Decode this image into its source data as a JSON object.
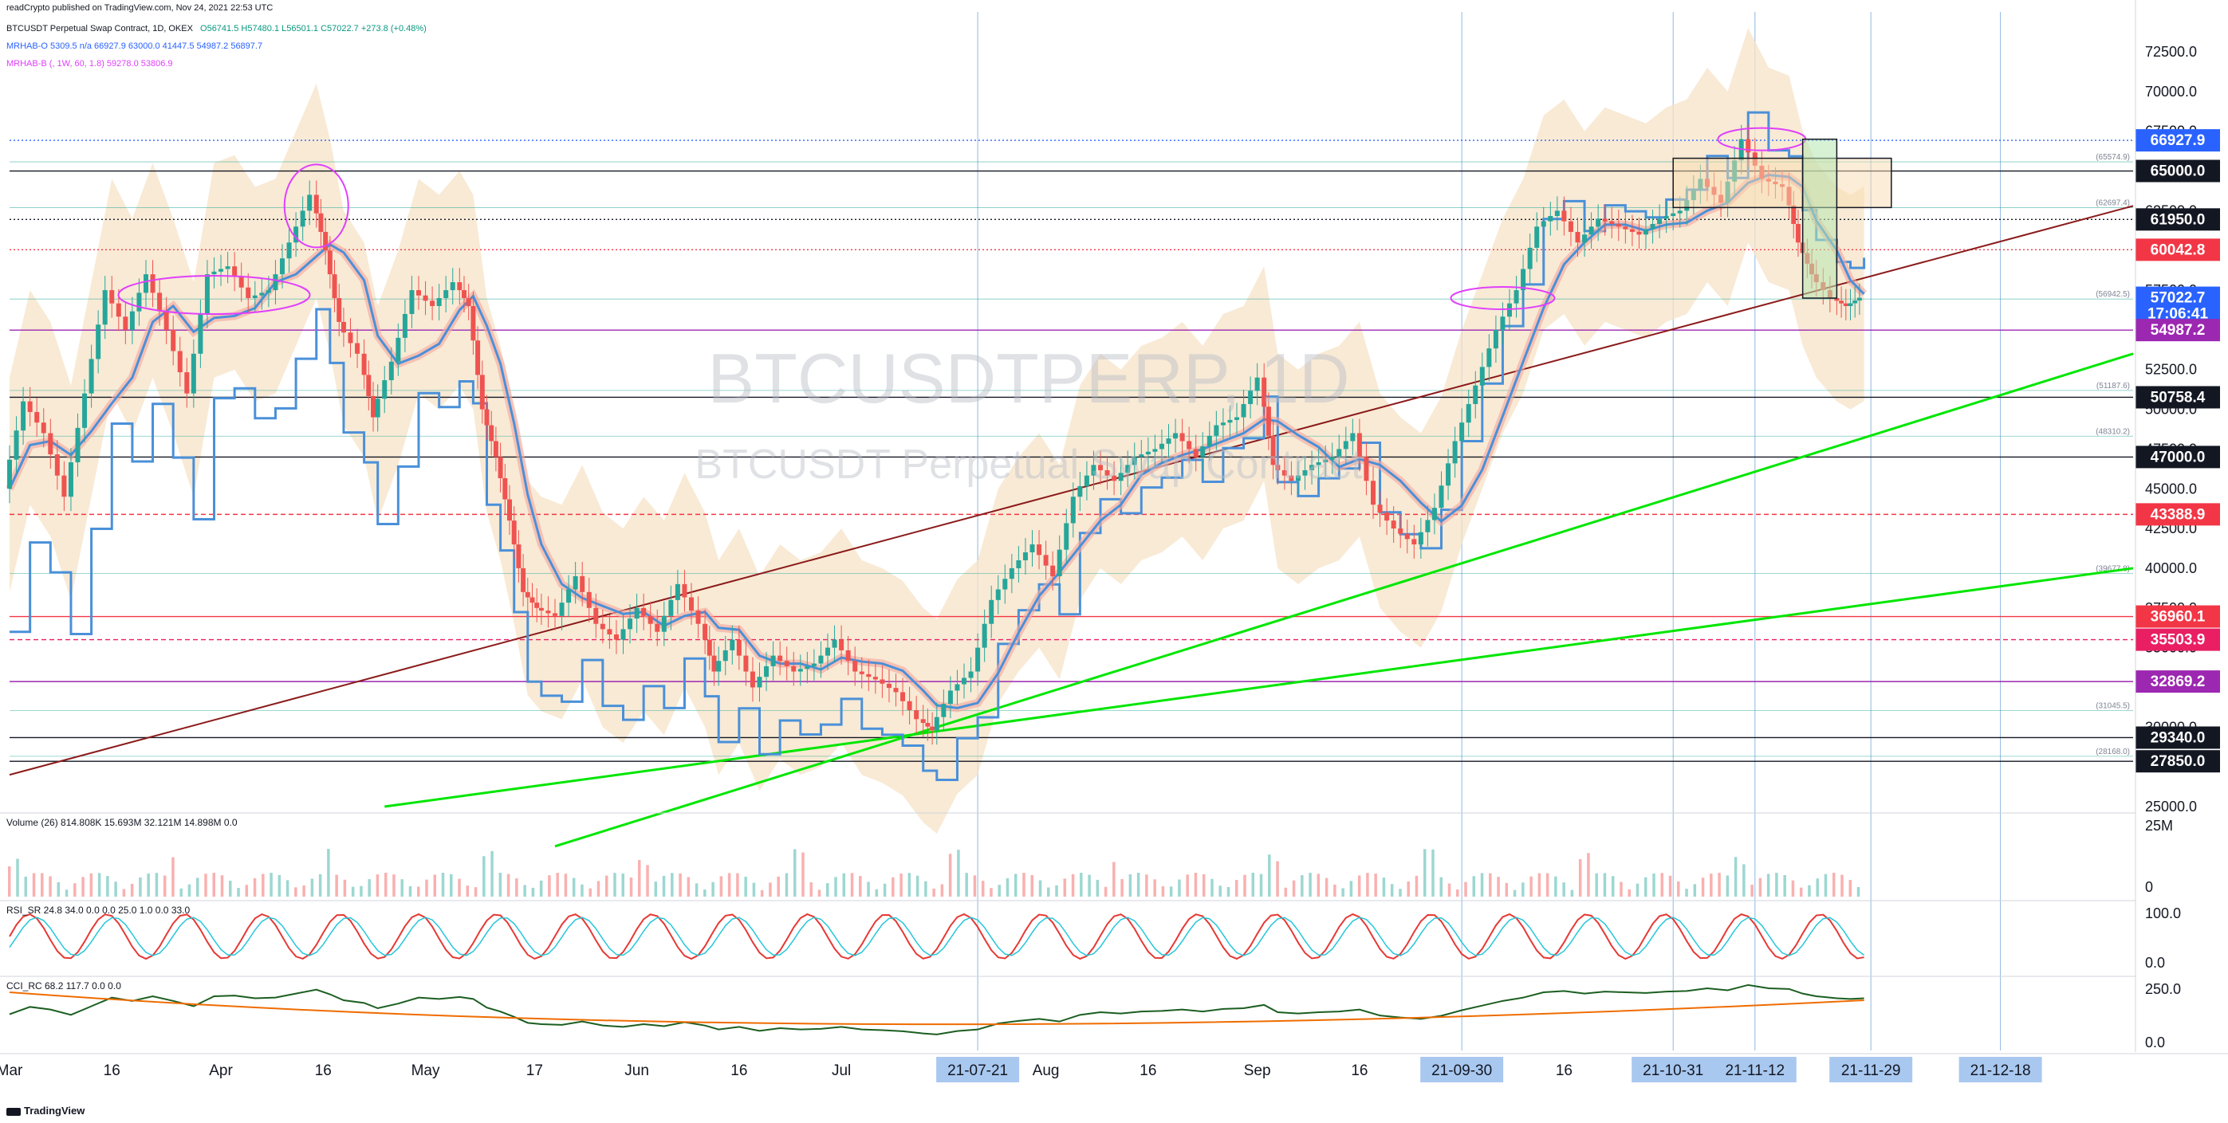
{
  "header": {
    "published": "readCrypto published on TradingView.com, Nov 24, 2021 22:53 UTC",
    "symbol_line": "BTCUSDT Perpetual Swap Contract, 1D, OKEX",
    "ohlc": "O56741.5  H57480.1  L56501.1  C57022.7  +273.8 (+0.48%)",
    "ind1": "MRHAB-O  5309.5  n/a  66927.9  63000.0  41447.5  54987.2  56897.7",
    "ind2": "MRHAB-B  (, 1W, 60, 1.8)  59278.0  53806.9"
  },
  "footer": {
    "brand": "TradingView"
  },
  "watermark": {
    "line1": "BTCUSDTPERP, 1D",
    "line2": "BTCUSDT Perpetual Swap Contract"
  },
  "colors": {
    "bull": "#26a69a",
    "bear": "#ef5350",
    "green_line": "#00e600",
    "trend_line": "#8b1a1a",
    "blue_line": "#4a90d9",
    "magenta": "#e040fb",
    "cloud": "#f6e3c7"
  },
  "chart_data": {
    "type": "candlestick",
    "title": "BTCUSDTPERP, 1D",
    "price_axis": {
      "min": 25000,
      "max": 72500,
      "side": "right",
      "ticks": [
        "72500.0",
        "70000.0",
        "67500.0",
        "65000.0",
        "62500.0",
        "60000.0",
        "57500.0",
        "55000.0",
        "52500.0",
        "50000.0",
        "47500.0",
        "45000.0",
        "42500.0",
        "40000.0",
        "37500.0",
        "35000.0",
        "32500.0",
        "30000.0",
        "27500.0",
        "25000.0"
      ],
      "tick_values": [
        72500,
        70000,
        67500,
        65000,
        62500,
        60000,
        57500,
        55000,
        52500,
        50000,
        47500,
        45000,
        42500,
        40000,
        37500,
        35000,
        32500,
        30000,
        27500,
        25000
      ]
    },
    "time_axis": {
      "labels": [
        "Mar",
        "16",
        "Apr",
        "16",
        "May",
        "17",
        "Jun",
        "16",
        "Jul",
        "21-07-21",
        "Aug",
        "16",
        "Sep",
        "16",
        "21-09-30",
        "16",
        "21-10-31",
        "21-11-12",
        "21-11-29",
        "21-12-18"
      ],
      "label_days": [
        0,
        15,
        31,
        46,
        61,
        77,
        92,
        107,
        122,
        142,
        152,
        167,
        183,
        198,
        213,
        228,
        244,
        256,
        273,
        292
      ],
      "highlighted": [
        "21-07-21",
        "21-09-30",
        "21-10-31",
        "21-11-12",
        "21-11-29",
        "21-12-18"
      ]
    },
    "price_labels": [
      {
        "value": 66927.9,
        "text": "66927.9",
        "bg": "#2962ff",
        "fg": "#ffffff",
        "line": "dotted"
      },
      {
        "value": 65000.0,
        "text": "65000.0",
        "bg": "#131722",
        "fg": "#ffffff",
        "line": "solid"
      },
      {
        "value": 61950.0,
        "text": "61950.0",
        "bg": "#131722",
        "fg": "#ffffff",
        "line": "dotted"
      },
      {
        "value": 60042.8,
        "text": "60042.8",
        "bg": "#f23645",
        "fg": "#ffffff",
        "line": "dotted"
      },
      {
        "value": 57022.7,
        "text": "57022.7",
        "bg": "#2962ff",
        "fg": "#ffffff",
        "line": "none",
        "sub": "17:06:41"
      },
      {
        "value": 54987.2,
        "text": "54987.2",
        "bg": "#9c27b0",
        "fg": "#ffffff",
        "line": "solid"
      },
      {
        "value": 50758.4,
        "text": "50758.4",
        "bg": "#131722",
        "fg": "#ffffff",
        "line": "solid"
      },
      {
        "value": 47000.0,
        "text": "47000.0",
        "bg": "#131722",
        "fg": "#ffffff",
        "line": "solid"
      },
      {
        "value": 43388.9,
        "text": "43388.9",
        "bg": "#f23645",
        "fg": "#ffffff",
        "line": "dashed"
      },
      {
        "value": 36960.1,
        "text": "36960.1",
        "bg": "#f23645",
        "fg": "#ffffff",
        "line": "solid"
      },
      {
        "value": 35503.9,
        "text": "35503.9",
        "bg": "#e91e63",
        "fg": "#ffffff",
        "line": "dashed"
      },
      {
        "value": 32869.2,
        "text": "32869.2",
        "bg": "#9c27b0",
        "fg": "#ffffff",
        "line": "solid"
      },
      {
        "value": 29340.0,
        "text": "29340.0",
        "bg": "#131722",
        "fg": "#ffffff",
        "line": "solid"
      },
      {
        "value": 27850.0,
        "text": "27850.0",
        "bg": "#131722",
        "fg": "#ffffff",
        "line": "solid"
      }
    ],
    "fib_labels": [
      {
        "value": 65574.9,
        "text": "(65574.9)"
      },
      {
        "value": 62697.4,
        "text": "(62697.4)"
      },
      {
        "value": 56942.5,
        "text": "(56942.5)"
      },
      {
        "value": 51187.6,
        "text": "(51187.6)"
      },
      {
        "value": 48310.2,
        "text": "(48310.2)"
      },
      {
        "value": 39677.8,
        "text": "(39677.8)"
      },
      {
        "value": 31045.5,
        "text": "(31045.5)"
      },
      {
        "value": 28168.0,
        "text": "(28168.0)"
      }
    ],
    "close_series": [
      {
        "day": 0,
        "close": 45000
      },
      {
        "day": 3,
        "close": 50500
      },
      {
        "day": 6,
        "close": 48500
      },
      {
        "day": 9,
        "close": 44500
      },
      {
        "day": 12,
        "close": 51000
      },
      {
        "day": 15,
        "close": 57500
      },
      {
        "day": 18,
        "close": 55000
      },
      {
        "day": 21,
        "close": 58500
      },
      {
        "day": 24,
        "close": 55000
      },
      {
        "day": 27,
        "close": 51000
      },
      {
        "day": 30,
        "close": 58500
      },
      {
        "day": 33,
        "close": 59000
      },
      {
        "day": 36,
        "close": 57000
      },
      {
        "day": 39,
        "close": 57500
      },
      {
        "day": 42,
        "close": 60500
      },
      {
        "day": 45,
        "close": 63500
      },
      {
        "day": 47,
        "close": 60000
      },
      {
        "day": 49,
        "close": 55500
      },
      {
        "day": 52,
        "close": 53500
      },
      {
        "day": 54,
        "close": 49500
      },
      {
        "day": 57,
        "close": 53000
      },
      {
        "day": 60,
        "close": 57500
      },
      {
        "day": 63,
        "close": 56500
      },
      {
        "day": 66,
        "close": 58000
      },
      {
        "day": 68,
        "close": 56500
      },
      {
        "day": 70,
        "close": 50000
      },
      {
        "day": 72,
        "close": 47000
      },
      {
        "day": 74,
        "close": 43000
      },
      {
        "day": 76,
        "close": 38500
      },
      {
        "day": 78,
        "close": 37500
      },
      {
        "day": 81,
        "close": 37000
      },
      {
        "day": 84,
        "close": 39500
      },
      {
        "day": 87,
        "close": 36500
      },
      {
        "day": 90,
        "close": 35500
      },
      {
        "day": 93,
        "close": 37500
      },
      {
        "day": 96,
        "close": 36000
      },
      {
        "day": 99,
        "close": 39000
      },
      {
        "day": 102,
        "close": 36500
      },
      {
        "day": 104,
        "close": 33500
      },
      {
        "day": 107,
        "close": 35500
      },
      {
        "day": 110,
        "close": 32500
      },
      {
        "day": 113,
        "close": 34500
      },
      {
        "day": 116,
        "close": 33500
      },
      {
        "day": 119,
        "close": 34000
      },
      {
        "day": 122,
        "close": 35500
      },
      {
        "day": 125,
        "close": 33500
      },
      {
        "day": 128,
        "close": 33000
      },
      {
        "day": 131,
        "close": 32200
      },
      {
        "day": 134,
        "close": 30500
      },
      {
        "day": 136,
        "close": 29800
      },
      {
        "day": 139,
        "close": 32300
      },
      {
        "day": 142,
        "close": 33500
      },
      {
        "day": 145,
        "close": 38000
      },
      {
        "day": 148,
        "close": 40000
      },
      {
        "day": 151,
        "close": 41500
      },
      {
        "day": 154,
        "close": 39500
      },
      {
        "day": 157,
        "close": 44500
      },
      {
        "day": 160,
        "close": 46500
      },
      {
        "day": 163,
        "close": 45500
      },
      {
        "day": 166,
        "close": 47000
      },
      {
        "day": 169,
        "close": 47500
      },
      {
        "day": 172,
        "close": 48500
      },
      {
        "day": 175,
        "close": 47000
      },
      {
        "day": 178,
        "close": 49000
      },
      {
        "day": 181,
        "close": 49500
      },
      {
        "day": 184,
        "close": 52000
      },
      {
        "day": 186,
        "close": 46500
      },
      {
        "day": 189,
        "close": 45500
      },
      {
        "day": 192,
        "close": 46500
      },
      {
        "day": 195,
        "close": 47000
      },
      {
        "day": 198,
        "close": 48500
      },
      {
        "day": 201,
        "close": 44000
      },
      {
        "day": 204,
        "close": 42500
      },
      {
        "day": 207,
        "close": 41500
      },
      {
        "day": 210,
        "close": 43800
      },
      {
        "day": 213,
        "close": 48000
      },
      {
        "day": 216,
        "close": 51500
      },
      {
        "day": 219,
        "close": 55000
      },
      {
        "day": 222,
        "close": 57500
      },
      {
        "day": 225,
        "close": 61500
      },
      {
        "day": 228,
        "close": 62500
      },
      {
        "day": 231,
        "close": 60500
      },
      {
        "day": 234,
        "close": 62000
      },
      {
        "day": 237,
        "close": 61500
      },
      {
        "day": 240,
        "close": 61000
      },
      {
        "day": 243,
        "close": 62000
      },
      {
        "day": 246,
        "close": 62500
      },
      {
        "day": 249,
        "close": 64500
      },
      {
        "day": 252,
        "close": 63000
      },
      {
        "day": 255,
        "close": 67000
      },
      {
        "day": 258,
        "close": 64500
      },
      {
        "day": 261,
        "close": 64000
      },
      {
        "day": 263,
        "close": 60500
      },
      {
        "day": 265,
        "close": 58500
      },
      {
        "day": 268,
        "close": 57000
      },
      {
        "day": 270,
        "close": 56500
      },
      {
        "day": 272,
        "close": 57022.7
      }
    ],
    "panes": [
      {
        "name": "Volume (26)",
        "values": "814.808K  15.693M  32.121M  14.898M  0.0",
        "axis": [
          "25M",
          "0"
        ]
      },
      {
        "name": "RSI_SR",
        "values": "24.8  34.0  0.0  0.0  25.0  1.0  0.0  33.0",
        "axis": [
          "100.0",
          "0.0"
        ]
      },
      {
        "name": "CCI_RC",
        "values": "68.2  117.7  0.0  0.0",
        "axis": [
          "250.0",
          "0.0"
        ]
      }
    ]
  }
}
